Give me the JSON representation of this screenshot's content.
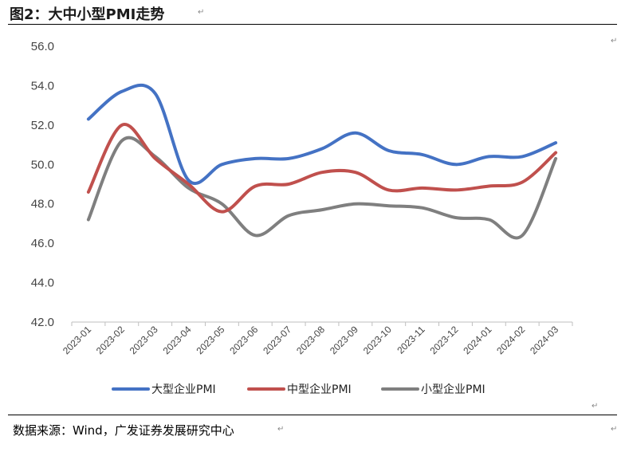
{
  "header": {
    "title": "图2：大中小型PMI走势"
  },
  "footer": {
    "source": "数据来源：Wind，广发证券发展研究中心"
  },
  "marks": {
    "return": "↵"
  },
  "colors": {
    "large": "#4472C4",
    "medium": "#C0504D",
    "small": "#7F7F7F",
    "axis": "#BFBFBF"
  },
  "chart_data": {
    "type": "line",
    "title": "大中小型PMI走势",
    "xlabel": "",
    "ylabel": "",
    "ylim": [
      42.0,
      56.0
    ],
    "yticks": [
      "56.0",
      "54.0",
      "52.0",
      "50.0",
      "48.0",
      "46.0",
      "44.0",
      "42.0"
    ],
    "ytick_values": [
      56,
      54,
      52,
      50,
      48,
      46,
      44,
      42
    ],
    "grid": false,
    "legend_position": "bottom",
    "categories": [
      "2023-01",
      "2023-02",
      "2023-03",
      "2023-04",
      "2023-05",
      "2023-06",
      "2023-07",
      "2023-08",
      "2023-09",
      "2023-10",
      "2023-11",
      "2023-12",
      "2024-01",
      "2024-02",
      "2024-03"
    ],
    "series": [
      {
        "name": "大型企业PMI",
        "values": [
          52.3,
          53.7,
          53.6,
          49.2,
          50.0,
          50.3,
          50.3,
          50.8,
          51.6,
          50.7,
          50.5,
          50.0,
          50.4,
          50.4,
          51.1
        ]
      },
      {
        "name": "中型企业PMI",
        "values": [
          48.6,
          52.0,
          50.3,
          49.0,
          47.6,
          48.9,
          49.0,
          49.6,
          49.6,
          48.7,
          48.8,
          48.7,
          48.9,
          49.1,
          50.6
        ]
      },
      {
        "name": "小型企业PMI",
        "values": [
          47.2,
          51.2,
          50.4,
          48.8,
          48.0,
          46.4,
          47.4,
          47.7,
          48.0,
          47.9,
          47.8,
          47.3,
          47.2,
          46.4,
          50.3
        ]
      }
    ]
  }
}
